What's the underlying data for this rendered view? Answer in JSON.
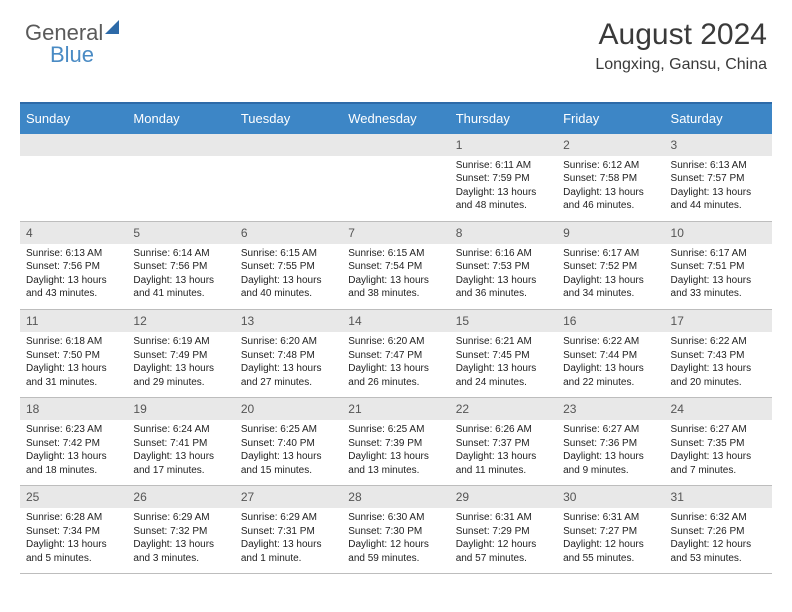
{
  "logo": {
    "text1": "General",
    "text2": "Blue"
  },
  "title": "August 2024",
  "location": "Longxing, Gansu, China",
  "colors": {
    "header_bg": "#3d86c6",
    "header_text": "#ffffff",
    "daynum_bg": "#e8e8e8",
    "daynum_text": "#555555",
    "border_top": "#2d6aa8",
    "row_border": "#bdbdbd",
    "body_text": "#222222",
    "title_text": "#3a3a3a",
    "page_bg": "#ffffff"
  },
  "day_headers": [
    "Sunday",
    "Monday",
    "Tuesday",
    "Wednesday",
    "Thursday",
    "Friday",
    "Saturday"
  ],
  "calendar_layout": {
    "columns": 7,
    "rows": 5,
    "first_day_column": 4
  },
  "days": [
    {
      "n": 1,
      "sunrise": "6:11 AM",
      "sunset": "7:59 PM",
      "daylight": "13 hours and 48 minutes."
    },
    {
      "n": 2,
      "sunrise": "6:12 AM",
      "sunset": "7:58 PM",
      "daylight": "13 hours and 46 minutes."
    },
    {
      "n": 3,
      "sunrise": "6:13 AM",
      "sunset": "7:57 PM",
      "daylight": "13 hours and 44 minutes."
    },
    {
      "n": 4,
      "sunrise": "6:13 AM",
      "sunset": "7:56 PM",
      "daylight": "13 hours and 43 minutes."
    },
    {
      "n": 5,
      "sunrise": "6:14 AM",
      "sunset": "7:56 PM",
      "daylight": "13 hours and 41 minutes."
    },
    {
      "n": 6,
      "sunrise": "6:15 AM",
      "sunset": "7:55 PM",
      "daylight": "13 hours and 40 minutes."
    },
    {
      "n": 7,
      "sunrise": "6:15 AM",
      "sunset": "7:54 PM",
      "daylight": "13 hours and 38 minutes."
    },
    {
      "n": 8,
      "sunrise": "6:16 AM",
      "sunset": "7:53 PM",
      "daylight": "13 hours and 36 minutes."
    },
    {
      "n": 9,
      "sunrise": "6:17 AM",
      "sunset": "7:52 PM",
      "daylight": "13 hours and 34 minutes."
    },
    {
      "n": 10,
      "sunrise": "6:17 AM",
      "sunset": "7:51 PM",
      "daylight": "13 hours and 33 minutes."
    },
    {
      "n": 11,
      "sunrise": "6:18 AM",
      "sunset": "7:50 PM",
      "daylight": "13 hours and 31 minutes."
    },
    {
      "n": 12,
      "sunrise": "6:19 AM",
      "sunset": "7:49 PM",
      "daylight": "13 hours and 29 minutes."
    },
    {
      "n": 13,
      "sunrise": "6:20 AM",
      "sunset": "7:48 PM",
      "daylight": "13 hours and 27 minutes."
    },
    {
      "n": 14,
      "sunrise": "6:20 AM",
      "sunset": "7:47 PM",
      "daylight": "13 hours and 26 minutes."
    },
    {
      "n": 15,
      "sunrise": "6:21 AM",
      "sunset": "7:45 PM",
      "daylight": "13 hours and 24 minutes."
    },
    {
      "n": 16,
      "sunrise": "6:22 AM",
      "sunset": "7:44 PM",
      "daylight": "13 hours and 22 minutes."
    },
    {
      "n": 17,
      "sunrise": "6:22 AM",
      "sunset": "7:43 PM",
      "daylight": "13 hours and 20 minutes."
    },
    {
      "n": 18,
      "sunrise": "6:23 AM",
      "sunset": "7:42 PM",
      "daylight": "13 hours and 18 minutes."
    },
    {
      "n": 19,
      "sunrise": "6:24 AM",
      "sunset": "7:41 PM",
      "daylight": "13 hours and 17 minutes."
    },
    {
      "n": 20,
      "sunrise": "6:25 AM",
      "sunset": "7:40 PM",
      "daylight": "13 hours and 15 minutes."
    },
    {
      "n": 21,
      "sunrise": "6:25 AM",
      "sunset": "7:39 PM",
      "daylight": "13 hours and 13 minutes."
    },
    {
      "n": 22,
      "sunrise": "6:26 AM",
      "sunset": "7:37 PM",
      "daylight": "13 hours and 11 minutes."
    },
    {
      "n": 23,
      "sunrise": "6:27 AM",
      "sunset": "7:36 PM",
      "daylight": "13 hours and 9 minutes."
    },
    {
      "n": 24,
      "sunrise": "6:27 AM",
      "sunset": "7:35 PM",
      "daylight": "13 hours and 7 minutes."
    },
    {
      "n": 25,
      "sunrise": "6:28 AM",
      "sunset": "7:34 PM",
      "daylight": "13 hours and 5 minutes."
    },
    {
      "n": 26,
      "sunrise": "6:29 AM",
      "sunset": "7:32 PM",
      "daylight": "13 hours and 3 minutes."
    },
    {
      "n": 27,
      "sunrise": "6:29 AM",
      "sunset": "7:31 PM",
      "daylight": "13 hours and 1 minute."
    },
    {
      "n": 28,
      "sunrise": "6:30 AM",
      "sunset": "7:30 PM",
      "daylight": "12 hours and 59 minutes."
    },
    {
      "n": 29,
      "sunrise": "6:31 AM",
      "sunset": "7:29 PM",
      "daylight": "12 hours and 57 minutes."
    },
    {
      "n": 30,
      "sunrise": "6:31 AM",
      "sunset": "7:27 PM",
      "daylight": "12 hours and 55 minutes."
    },
    {
      "n": 31,
      "sunrise": "6:32 AM",
      "sunset": "7:26 PM",
      "daylight": "12 hours and 53 minutes."
    }
  ],
  "labels": {
    "sunrise": "Sunrise:",
    "sunset": "Sunset:",
    "daylight": "Daylight:"
  }
}
